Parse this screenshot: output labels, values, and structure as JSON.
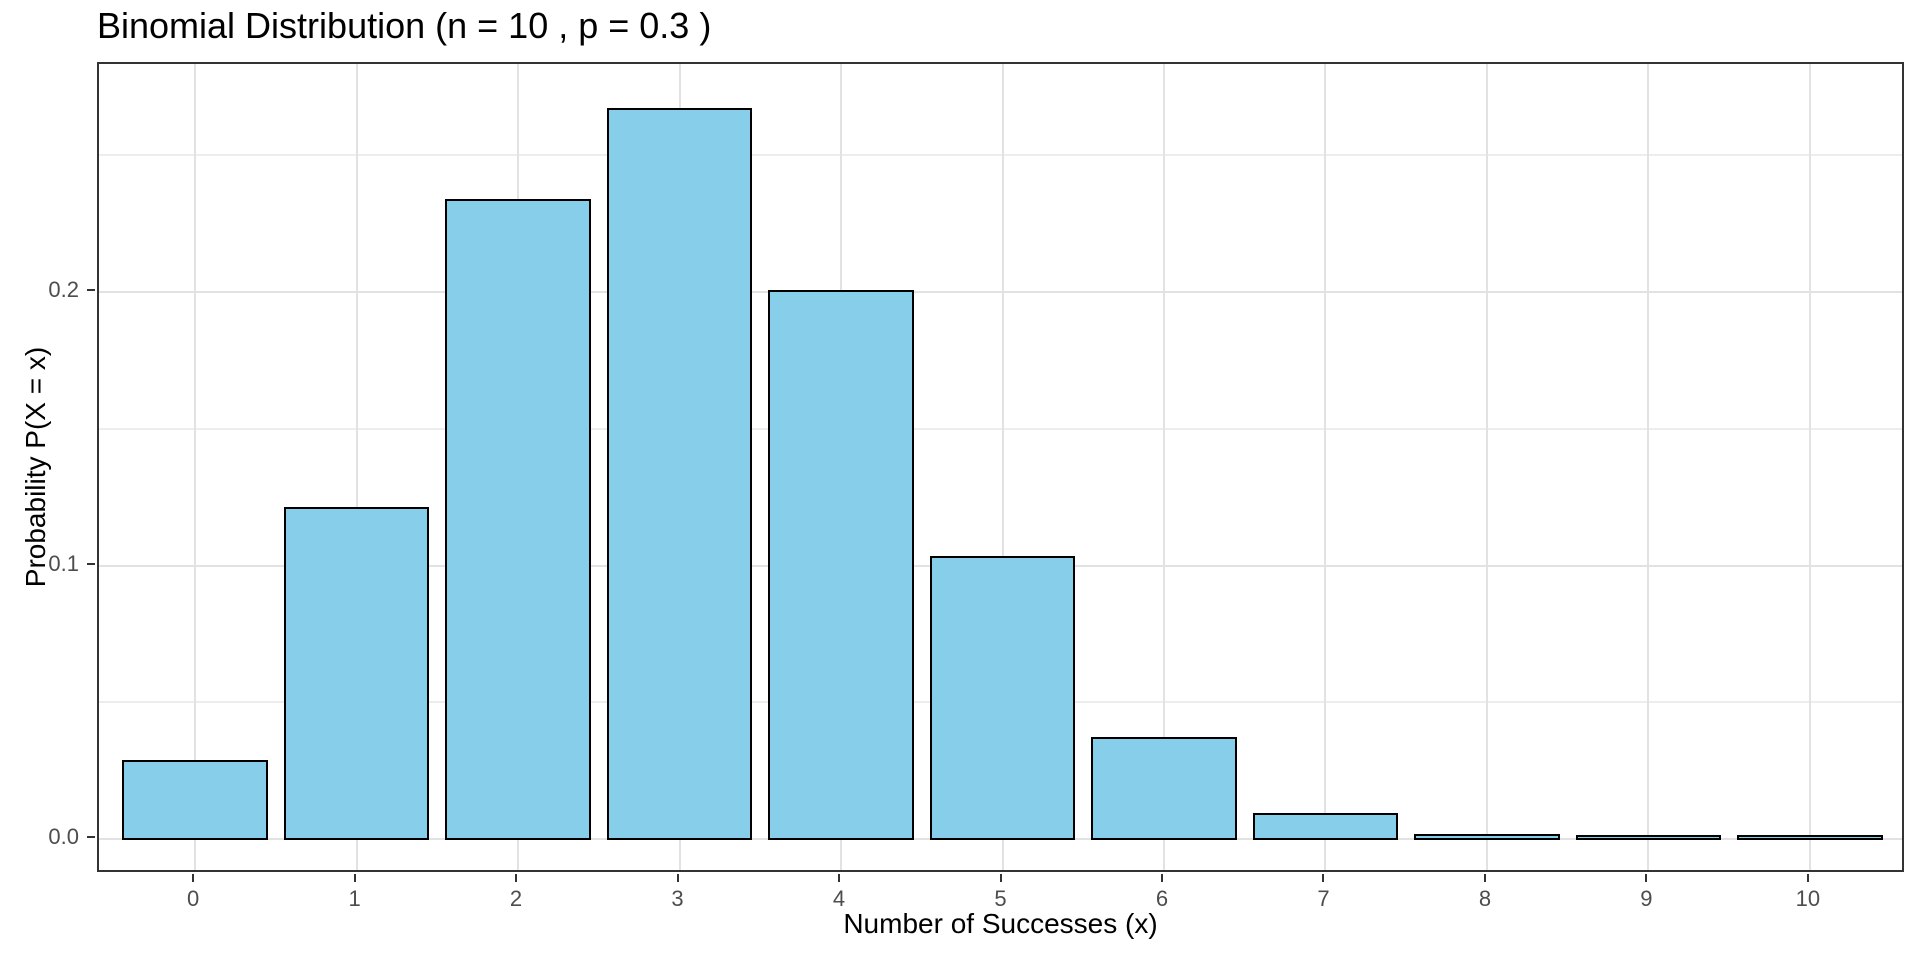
{
  "chart_data": {
    "type": "bar",
    "title": "Binomial Distribution (n = 10 , p = 0.3 )",
    "xlabel": "Number of Successes (x)",
    "ylabel": "Probability P(X = x)",
    "categories": [
      0,
      1,
      2,
      3,
      4,
      5,
      6,
      7,
      8,
      9,
      10
    ],
    "values": [
      0.0282475,
      0.1210608,
      0.2334744,
      0.2668279,
      0.2001209,
      0.1029193,
      0.0367569,
      0.0090017,
      0.0014467,
      0.0001378,
      5.9e-06
    ],
    "bar_width": 0.9,
    "x_tick_labels": [
      "0",
      "1",
      "2",
      "3",
      "4",
      "5",
      "6",
      "7",
      "8",
      "9",
      "10"
    ],
    "y_ticks": {
      "values": [
        0,
        0.1,
        0.2
      ],
      "labels": [
        "0.0",
        "0.1",
        "0.2"
      ]
    },
    "y_minor_gridlines": [
      0.05,
      0.15,
      0.25
    ],
    "xlim": [
      -0.595,
      10.595
    ],
    "ylim": [
      -0.0128,
      0.2834
    ],
    "grid": "horizontal major+minor, vertical major only",
    "legend": "none",
    "colors": {
      "bar_fill": "#87CEEB",
      "bar_stroke": "#000000",
      "grid_major": "#E2E2E2",
      "grid_minor": "#EDEDED",
      "panel_border": "#333333",
      "tick_mark": "#333333",
      "tick_label": "#4D4D4D",
      "title_color": "#000000",
      "axis_title_color": "#000000",
      "background": "#FFFFFF"
    }
  }
}
